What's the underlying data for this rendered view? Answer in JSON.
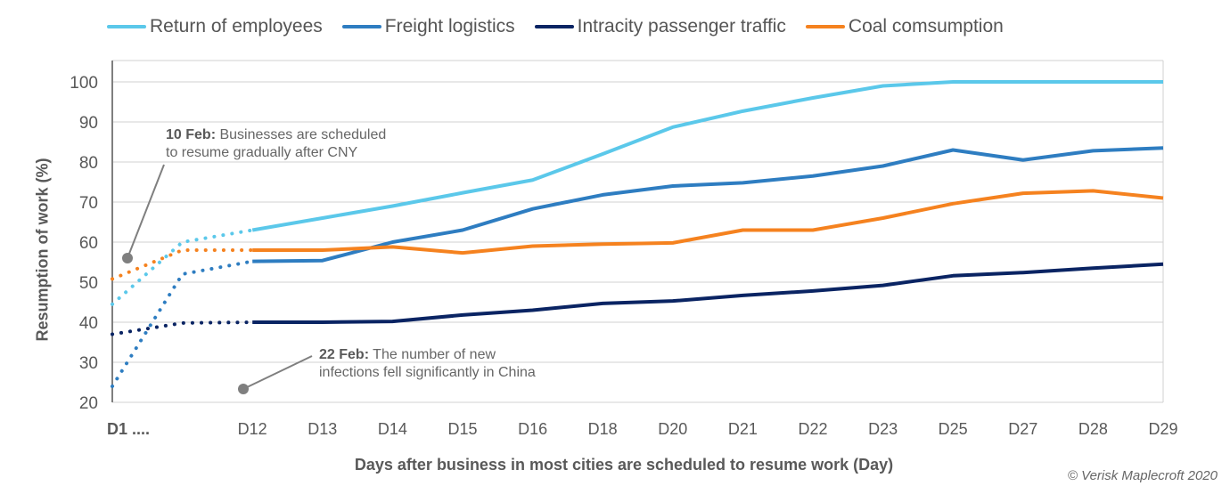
{
  "chart_data": {
    "type": "line",
    "xlabel": "Days after business in most cities are scheduled to resume work (Day)",
    "ylabel": "Resumption of work (%)",
    "ylim": [
      20,
      100
    ],
    "yticks": [
      20,
      30,
      40,
      50,
      60,
      70,
      80,
      90,
      100
    ],
    "categories": [
      "D1 ....",
      "",
      "D12",
      "D13",
      "D14",
      "D15",
      "D16",
      "D18",
      "D20",
      "D21",
      "D22",
      "D23",
      "D25",
      "D27",
      "D28",
      "D29"
    ],
    "dotted_until": "D12",
    "grid": true,
    "legend_placement": "top",
    "series": [
      {
        "name": "Return of employees",
        "color": "#5BC8EA",
        "values": [
          44.5,
          60,
          63,
          66,
          69,
          72.3,
          75.5,
          82,
          88.7,
          92.7,
          96,
          99,
          100,
          100,
          100,
          100
        ]
      },
      {
        "name": "Freight logistics",
        "color": "#2E7DC1",
        "values": [
          24,
          52,
          55.2,
          55.4,
          60,
          63,
          68.3,
          71.8,
          74,
          74.8,
          76.5,
          79,
          83,
          80.5,
          82.8,
          83.5
        ]
      },
      {
        "name": "Intracity passenger traffic",
        "color": "#0A2463",
        "values": [
          37,
          39.8,
          40,
          40,
          40.2,
          41.8,
          43,
          44.7,
          45.3,
          46.7,
          47.8,
          49.2,
          51.6,
          52.4,
          53.5,
          54.5
        ]
      },
      {
        "name": "Coal comsumption",
        "color": "#F5821F",
        "values": [
          50.8,
          58,
          58,
          58,
          58.8,
          57.3,
          59,
          59.5,
          59.8,
          63,
          63,
          66,
          69.6,
          72.2,
          72.8,
          71
        ]
      }
    ],
    "annotations": [
      {
        "bold": "10 Feb:",
        "text": "Businesses are scheduled",
        "text2": "to resume gradually after CNY"
      },
      {
        "bold": "22 Feb:",
        "text": "The number of new",
        "text2": "infections fell significantly in China"
      }
    ]
  },
  "credit": "© Verisk Maplecroft 2020"
}
